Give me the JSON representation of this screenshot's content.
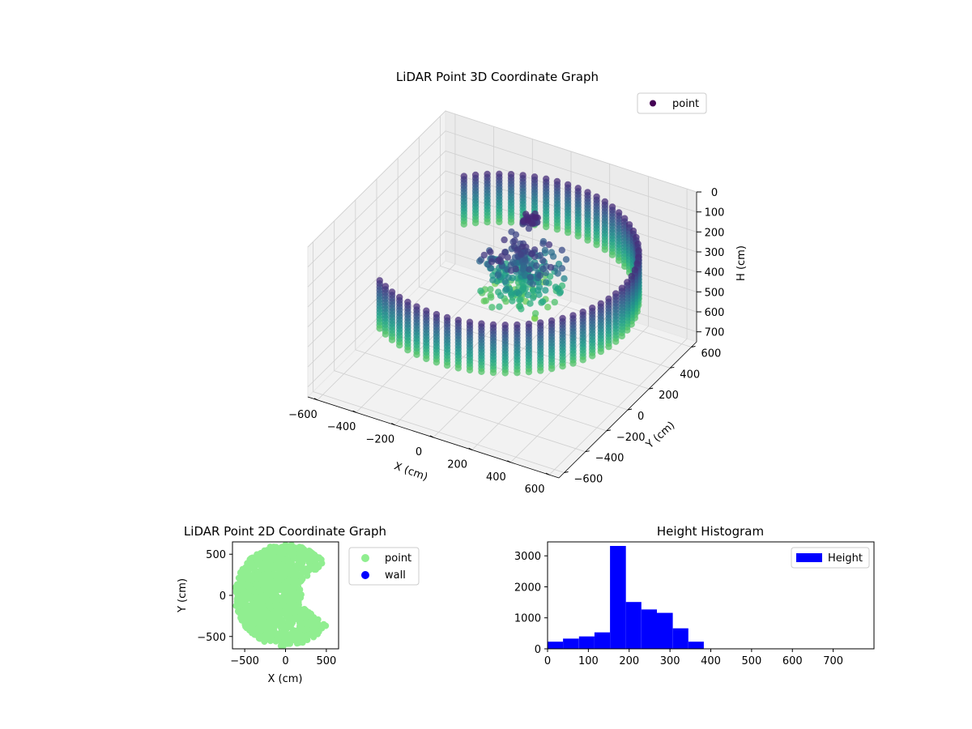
{
  "chart_data": [
    {
      "type": "scatter",
      "title": "LiDAR Point 3D Coordinate Graph",
      "xlabel": "X (cm)",
      "ylabel": "Y (cm)",
      "zlabel": "H (cm)",
      "xlim": [
        -650,
        650
      ],
      "ylim": [
        -650,
        650
      ],
      "zlim": [
        0,
        750
      ],
      "z_inverted": true,
      "x_ticks": [
        -600,
        -400,
        -200,
        0,
        200,
        400,
        600
      ],
      "y_ticks": [
        -600,
        -400,
        -200,
        0,
        200,
        400,
        600
      ],
      "z_ticks": [
        0,
        100,
        200,
        300,
        400,
        500,
        600,
        700
      ],
      "colormap": "viridis",
      "legend": [
        {
          "label": "point",
          "color": "#440154"
        }
      ],
      "legend_position": "upper right",
      "grid": true,
      "wall_radius": 620,
      "wall_height_range": [
        150,
        400
      ],
      "wall_angle_range_deg": [
        -125,
        135
      ],
      "inner_point_radius": 200
    },
    {
      "type": "scatter",
      "title": "LiDAR Point 2D Coordinate Graph",
      "xlabel": "X (cm)",
      "ylabel": "Y (cm)",
      "xlim": [
        -650,
        650
      ],
      "ylim": [
        -650,
        650
      ],
      "x_ticks": [
        -500,
        0,
        500
      ],
      "y_ticks": [
        -500,
        0,
        500
      ],
      "series": [
        {
          "name": "point",
          "color": "#90ee90"
        },
        {
          "name": "wall",
          "color": "#0000ff"
        }
      ],
      "legend_position": "outside upper right"
    },
    {
      "type": "bar",
      "title": "Height Histogram",
      "xlim": [
        0,
        800
      ],
      "ylim": [
        0,
        3450
      ],
      "x_ticks": [
        0,
        100,
        200,
        300,
        400,
        500,
        600,
        700
      ],
      "y_ticks": [
        0,
        1000,
        2000,
        3000
      ],
      "bin_edges": [
        0,
        38,
        77,
        115,
        153,
        192,
        230,
        268,
        307,
        345,
        383,
        422,
        460,
        498,
        537,
        575,
        613,
        652,
        690,
        728,
        767
      ],
      "values": [
        230,
        330,
        400,
        530,
        3320,
        1510,
        1270,
        1160,
        660,
        230,
        5,
        3,
        3,
        3,
        2,
        2,
        1,
        1,
        1,
        1
      ],
      "series": [
        {
          "name": "Height",
          "color": "#0000ff"
        }
      ],
      "legend_position": "upper right"
    }
  ]
}
